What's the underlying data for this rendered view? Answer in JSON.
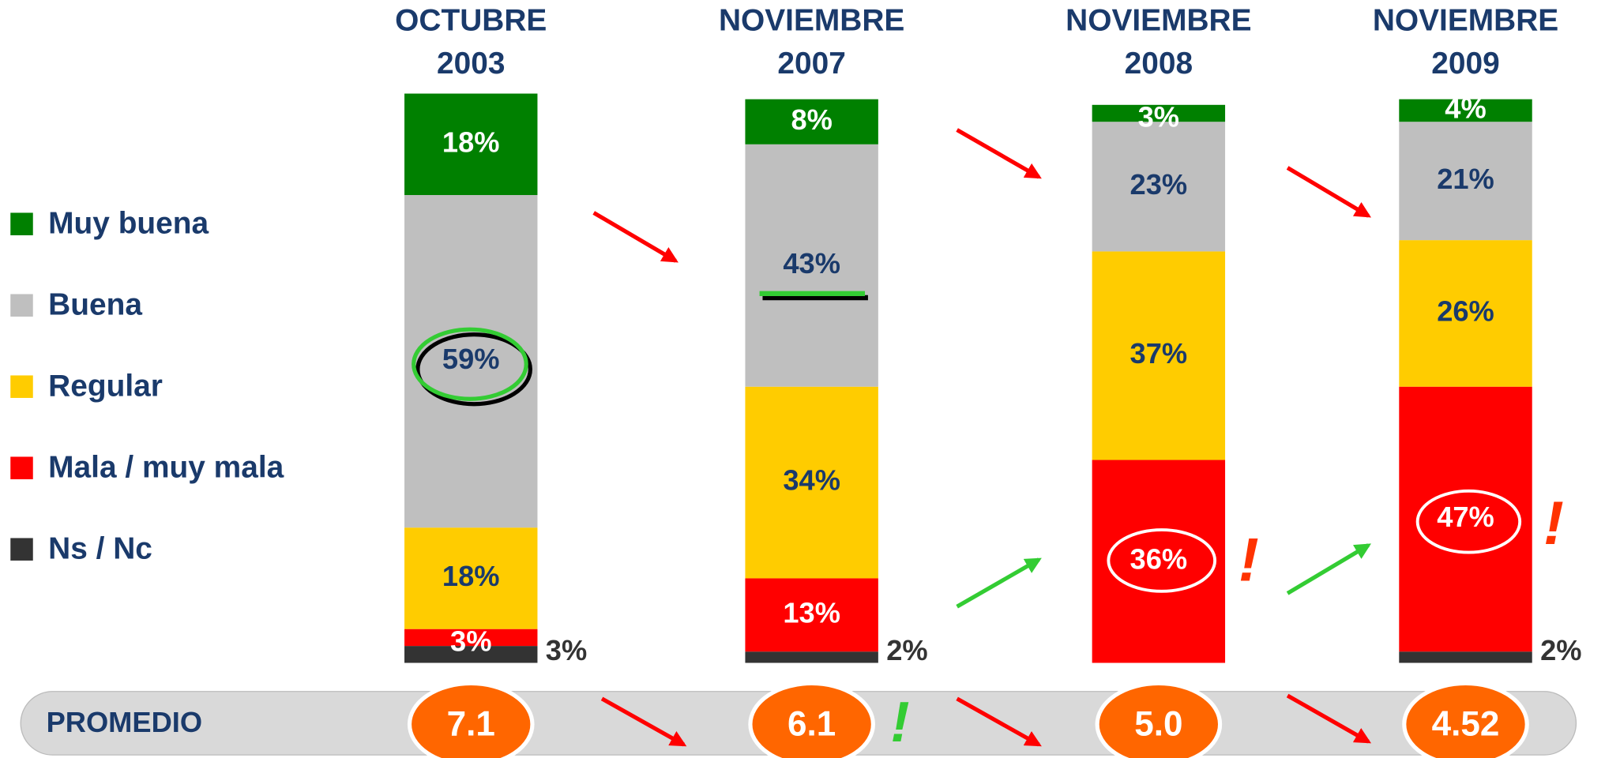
{
  "chart_data": {
    "type": "stacked_bar",
    "categories": [
      "OCTUBRE 2003",
      "NOVIEMBRE 2007",
      "NOVIEMBRE 2008",
      "NOVIEMBRE 2009"
    ],
    "series": [
      {
        "name": "Muy buena",
        "color": "#008000",
        "values": [
          18,
          8,
          3,
          4
        ],
        "value_labels": [
          "18%",
          "8%",
          "3%",
          "4%"
        ]
      },
      {
        "name": "Buena",
        "color": "#bfbfbf",
        "values": [
          59,
          43,
          23,
          21
        ],
        "value_labels": [
          "59%",
          "43%",
          "23%",
          "21%"
        ]
      },
      {
        "name": "Regular",
        "color": "#ffcc00",
        "values": [
          18,
          34,
          37,
          26
        ],
        "value_labels": [
          "18%",
          "34%",
          "37%",
          "26%"
        ]
      },
      {
        "name": "Mala / muy mala",
        "color": "#ff0000",
        "values": [
          3,
          13,
          36,
          47
        ],
        "value_labels": [
          "3%",
          "13%",
          "36%",
          "47%"
        ]
      },
      {
        "name": "Ns / Nc",
        "color": "#333333",
        "values": [
          3,
          2,
          null,
          2
        ],
        "value_labels": [
          "3%",
          "2%",
          null,
          "2%"
        ]
      }
    ],
    "average": {
      "label": "PROMEDIO",
      "color": "#ff6600",
      "values": [
        7.1,
        6.1,
        5.0,
        4.52
      ],
      "value_labels": [
        "7.1",
        "6.1",
        "5.0",
        "4.52"
      ]
    }
  }
}
